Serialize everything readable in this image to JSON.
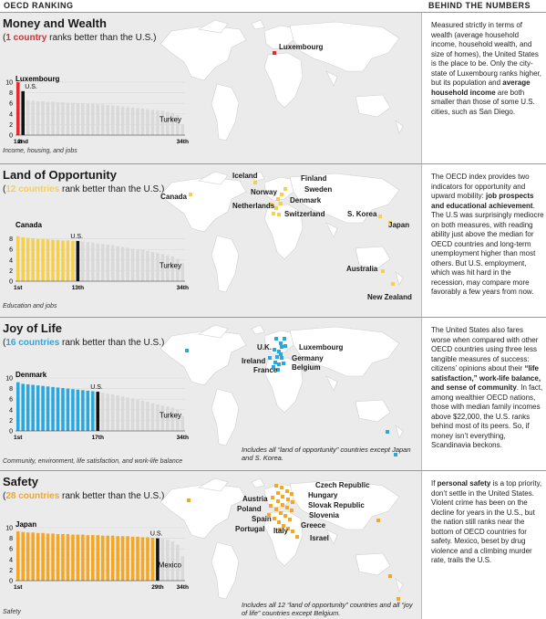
{
  "header": {
    "left": "OECD RANKING",
    "right": "BEHIND THE NUMBERS"
  },
  "sections": [
    {
      "title": "Money and Wealth",
      "sub_open": "(",
      "sub_bold": "1 country",
      "sub_rest": " ranks better than the U.S.)",
      "footnote": "Income, housing, and jobs",
      "note": "",
      "para": [
        {
          "t": "Measured strictly in terms of wealth (average household income, household wealth, and size of homes), the United States is the place to be. Only the city-state of Luxembourg ranks higher, but its population and "
        },
        {
          "t": "average household income",
          "b": true
        },
        {
          "t": " are both smaller than those of some U.S. cities, such as San Diego."
        }
      ],
      "map_labels": [
        "Luxembourg"
      ]
    },
    {
      "title": "Land of Opportunity",
      "sub_open": "(",
      "sub_bold": "12 countries",
      "sub_rest": " rank better than the U.S.)",
      "footnote": "Education and jobs",
      "note": "",
      "para": [
        {
          "t": "The OECD index provides two indicators for opportunity and upward mobility: "
        },
        {
          "t": "job prospects and educational achievement",
          "b": true
        },
        {
          "t": ". The U.S was surprisingly mediocre on both measures, with reading ability just above the median for OECD countries and long-term unemployment higher than most others. But U.S. employment, which was hit hard in the recession, may compare more favorably a few years from now."
        }
      ],
      "map_labels": [
        "Iceland",
        "Finland",
        "Sweden",
        "Norway",
        "Denmark",
        "Netherlands",
        "Switzerland",
        "Canada",
        "S. Korea",
        "Japan",
        "Australia",
        "New Zealand"
      ]
    },
    {
      "title": "Joy of Life",
      "sub_open": "(",
      "sub_bold": "16 countries",
      "sub_rest": " rank better than the U.S.)",
      "footnote": "Community, environment, life satisfaction, and work-life balance",
      "note": "Includes all “land of opportunity” countries except Japan and S. Korea.",
      "para": [
        {
          "t": "The United States also fares worse when compared with other OECD countries using three less tangible measures of success: citizens’ opinions about their "
        },
        {
          "t": "“life satisfaction,” work-life balance, and sense of community",
          "b": true
        },
        {
          "t": ". In fact, among wealthier OECD nations, those with median family incomes above $22,000, the U.S. ranks behind most of its peers. So, if money isn’t everything, Scandinavia beckons."
        }
      ],
      "map_labels": [
        "U.K.",
        "Luxembourg",
        "Germany",
        "Ireland",
        "Belgium",
        "France"
      ]
    },
    {
      "title": "Safety",
      "sub_open": "(",
      "sub_bold": "28 countries",
      "sub_rest": " rank better than the U.S.)",
      "footnote": "Safety",
      "note": "Includes all 12 “land of opportunity” countries and all “joy of life” countries except Belgium.",
      "para": [
        {
          "t": "If "
        },
        {
          "t": "personal safety",
          "b": true
        },
        {
          "t": " is a top priority, don’t settle in the United States. Violent crime has been on the decline for years in the U.S., but the nation still ranks near the bottom of OECD countries for safety. Mexico, beset by drug violence and a climbing murder rate, trails the U.S."
        }
      ],
      "map_labels": [
        "Czech Republic",
        "Hungary",
        "Austria",
        "Slovak Republic",
        "Poland",
        "Slovenia",
        "Spain",
        "Portugal",
        "Italy",
        "Greece",
        "Israel"
      ]
    }
  ],
  "chart_data": [
    {
      "type": "bar",
      "title": "Money and Wealth",
      "accent": "#e8282b",
      "us_color": "#111111",
      "other_color": "#d9d9d9",
      "ylim": [
        0,
        10
      ],
      "yticks": [
        0,
        2,
        4,
        6,
        8,
        10
      ],
      "us_rank": 2,
      "first_label": "Luxembourg",
      "last_label": "Turkey",
      "us_label": "U.S.",
      "xtick_labels": [
        "1st",
        "2nd",
        "34th"
      ],
      "values": [
        10.0,
        8.3,
        6.6,
        6.5,
        6.4,
        6.4,
        6.3,
        6.3,
        6.2,
        6.2,
        6.1,
        6.1,
        6.0,
        6.0,
        5.9,
        5.9,
        5.8,
        5.8,
        5.7,
        5.6,
        5.5,
        5.4,
        5.3,
        5.2,
        5.1,
        5.0,
        4.9,
        4.8,
        4.7,
        4.6,
        4.4,
        4.2,
        3.8,
        2.0
      ]
    },
    {
      "type": "bar",
      "title": "Land of Opportunity",
      "accent": "#f6d04d",
      "us_color": "#111111",
      "other_color": "#d9d9d9",
      "ylim": [
        0,
        10
      ],
      "yticks": [
        0,
        2,
        4,
        6,
        8
      ],
      "us_rank": 13,
      "first_label": "Canada",
      "last_label": "Turkey",
      "us_label": "U.S.",
      "xtick_labels": [
        "1st",
        "13th",
        "34th"
      ],
      "values": [
        8.5,
        8.3,
        8.2,
        8.1,
        8.0,
        8.0,
        7.9,
        7.8,
        7.8,
        7.7,
        7.7,
        7.6,
        7.6,
        7.5,
        7.4,
        7.3,
        7.1,
        7.0,
        6.9,
        6.8,
        6.6,
        6.5,
        6.3,
        6.1,
        6.0,
        5.9,
        5.7,
        5.5,
        5.3,
        5.1,
        4.9,
        4.7,
        4.2,
        3.4
      ]
    },
    {
      "type": "bar",
      "title": "Joy of Life",
      "accent": "#29a8e0",
      "us_color": "#111111",
      "other_color": "#d9d9d9",
      "ylim": [
        0,
        10
      ],
      "yticks": [
        0,
        2,
        4,
        6,
        8,
        10
      ],
      "us_rank": 17,
      "first_label": "Denmark",
      "last_label": "Turkey",
      "us_label": "U.S.",
      "xtick_labels": [
        "1st",
        "17th",
        "34th"
      ],
      "values": [
        9.2,
        8.9,
        8.8,
        8.7,
        8.6,
        8.5,
        8.4,
        8.3,
        8.2,
        8.1,
        8.0,
        7.9,
        7.8,
        7.7,
        7.6,
        7.5,
        7.4,
        7.2,
        7.0,
        6.9,
        6.7,
        6.5,
        6.3,
        6.1,
        5.9,
        5.7,
        5.5,
        5.2,
        5.0,
        4.8,
        4.6,
        4.4,
        4.0,
        2.8
      ]
    },
    {
      "type": "bar",
      "title": "Safety",
      "accent": "#f5a623",
      "us_color": "#111111",
      "other_color": "#d9d9d9",
      "ylim": [
        0,
        10
      ],
      "yticks": [
        0,
        2,
        4,
        6,
        8,
        10
      ],
      "us_rank": 29,
      "first_label": "Japan",
      "last_label": "Mexico",
      "us_label": "U.S.",
      "xtick_labels": [
        "1st",
        "29th",
        "34th"
      ],
      "values": [
        9.3,
        9.2,
        9.1,
        9.1,
        9.0,
        9.0,
        8.9,
        8.9,
        8.8,
        8.8,
        8.8,
        8.7,
        8.7,
        8.7,
        8.6,
        8.6,
        8.6,
        8.5,
        8.5,
        8.5,
        8.4,
        8.4,
        8.4,
        8.3,
        8.3,
        8.2,
        8.2,
        8.1,
        8.0,
        7.9,
        7.7,
        7.4,
        6.8,
        4.6
      ]
    }
  ]
}
